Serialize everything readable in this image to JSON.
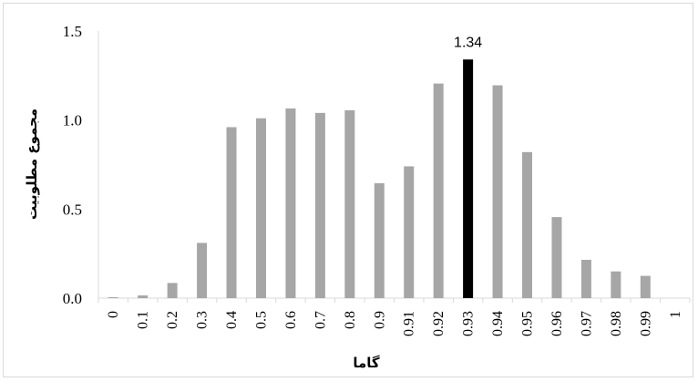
{
  "chart_data": {
    "type": "bar",
    "xlabel": "گاما",
    "ylabel": "مجموع مطلوبیت",
    "categories": [
      "0",
      "0.1",
      "0.2",
      "0.3",
      "0.4",
      "0.5",
      "0.6",
      "0.7",
      "0.8",
      "0.9",
      "0.91",
      "0.92",
      "0.93",
      "0.94",
      "0.95",
      "0.96",
      "0.97",
      "0.98",
      "0.99",
      "1"
    ],
    "values": [
      0.005,
      0.015,
      0.085,
      0.31,
      0.96,
      1.01,
      1.065,
      1.04,
      1.055,
      0.645,
      0.74,
      1.205,
      1.34,
      1.195,
      0.82,
      0.455,
      0.215,
      0.15,
      0.125,
      0
    ],
    "ylim": [
      0,
      1.5
    ],
    "yticks": [
      "0.0",
      "0.5",
      "1.0",
      "1.5"
    ],
    "highlight_index": 12,
    "highlight_label": "1.34",
    "colors": {
      "bar": "#a6a6a6",
      "highlight": "#000000",
      "grid": "#d9d9d9"
    },
    "grid": false,
    "legend": "none"
  }
}
